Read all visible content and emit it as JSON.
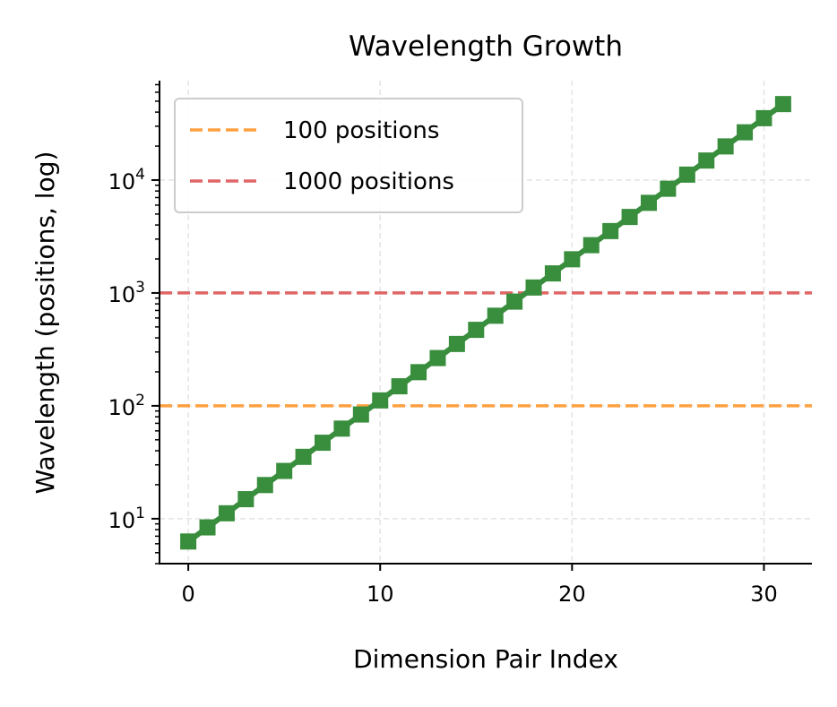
{
  "chart_data": {
    "type": "line",
    "title": "Wavelength Growth",
    "xlabel": "Dimension Pair Index",
    "ylabel": "Wavelength (positions, log)",
    "xlim": [
      -1.5,
      32.5
    ],
    "ylim": [
      4,
      76000
    ],
    "yscale": "log",
    "grid": true,
    "legend_position": "top-left",
    "x_ticks": [
      0,
      10,
      20,
      30
    ],
    "x_tick_labels": [
      "0",
      "10",
      "20",
      "30"
    ],
    "y_ticks": [
      10,
      100,
      1000,
      10000
    ],
    "y_tick_labels": [
      [
        "10",
        "1"
      ],
      [
        "10",
        "2"
      ],
      [
        "10",
        "3"
      ],
      [
        "10",
        "4"
      ]
    ],
    "x": [
      0,
      1,
      2,
      3,
      4,
      5,
      6,
      7,
      8,
      9,
      10,
      11,
      12,
      13,
      14,
      15,
      16,
      17,
      18,
      19,
      20,
      21,
      22,
      23,
      24,
      25,
      26,
      27,
      28,
      29,
      30,
      31
    ],
    "series": [
      {
        "values": [
          6.283,
          8.379,
          11.17,
          14.9,
          19.87,
          26.5,
          35.33,
          47.12,
          62.83,
          83.79,
          111.7,
          149.0,
          198.7,
          265.0,
          353.3,
          471.2,
          628.3,
          837.9,
          1117,
          1490,
          1987,
          2650,
          3533,
          4712,
          6283,
          8379,
          11173,
          14900,
          19869,
          26496,
          35333,
          47117
        ],
        "color": "#388e3c",
        "marker": "square"
      }
    ],
    "reference_lines": [
      {
        "name": "100 positions",
        "y": 100,
        "color": "#ffa040",
        "style": "dashed"
      },
      {
        "name": "1000 positions",
        "y": 1000,
        "color": "#e06666",
        "style": "dashed"
      }
    ]
  }
}
